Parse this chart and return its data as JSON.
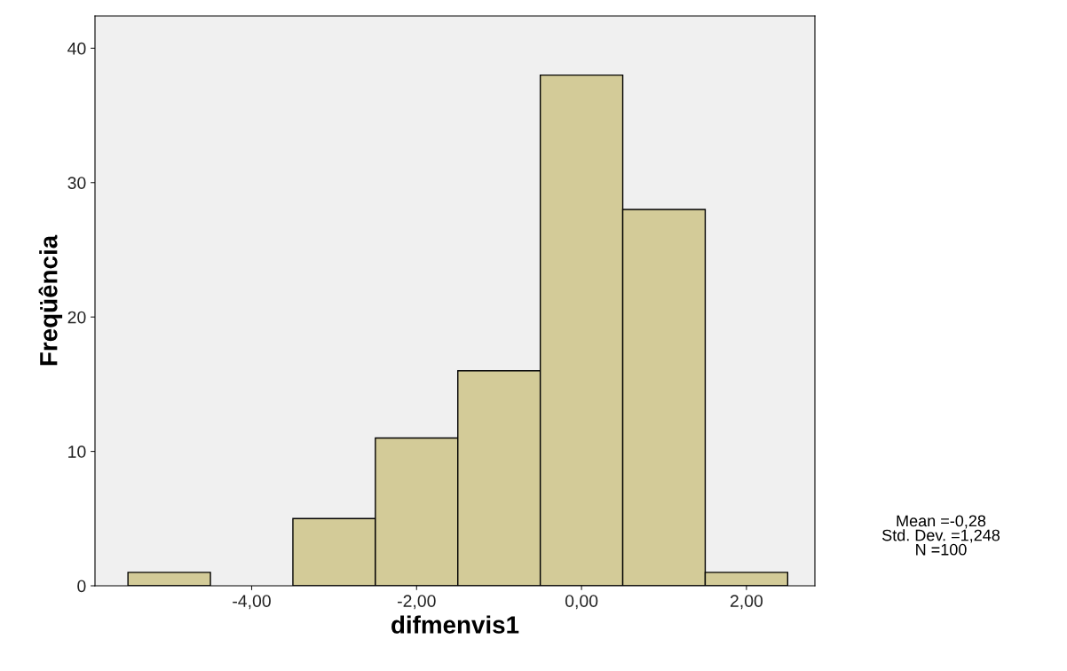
{
  "chart_data": {
    "type": "histogram",
    "xlabel": "difmenvis1",
    "ylabel": "Freqüência",
    "bins": [
      -5.5,
      -4.5,
      -3.5,
      -2.5,
      -1.5,
      -0.5,
      0.5,
      1.5,
      2.5
    ],
    "values": [
      1,
      0,
      5,
      11,
      16,
      38,
      28,
      1
    ],
    "color": "#d3cb98",
    "xlim": [
      -5.9,
      2.83
    ],
    "xticks": [
      {
        "value": -4,
        "label": "-4,00"
      },
      {
        "value": -2,
        "label": "-2,00"
      },
      {
        "value": 0,
        "label": "0,00"
      },
      {
        "value": 2,
        "label": "2,00"
      }
    ],
    "ylim": [
      0,
      42.4
    ],
    "yticks": [
      0,
      10,
      20,
      30,
      40
    ],
    "grid": false,
    "legend": false,
    "annotations": [
      "Mean =-0,28\nStd. Dev. =1,248\nN =100"
    ]
  }
}
